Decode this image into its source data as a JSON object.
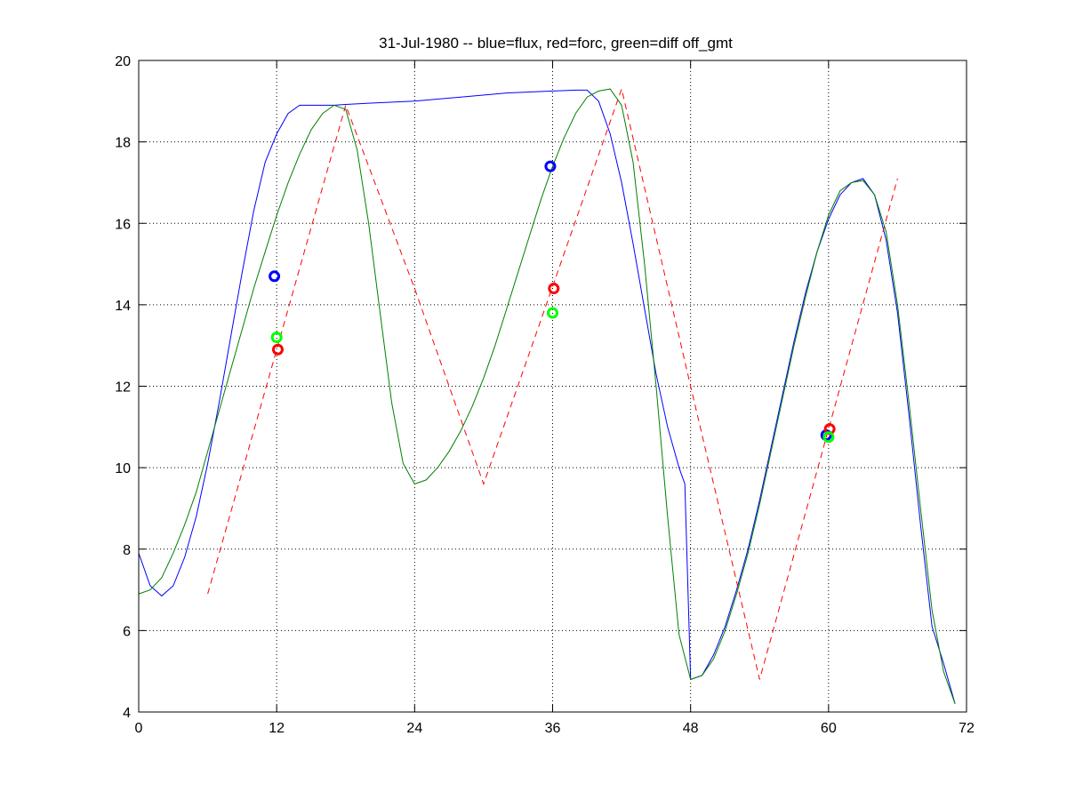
{
  "chart_data": {
    "type": "line",
    "title": "31-Jul-1980 -- blue=flux, red=forc, green=diff off_gmt",
    "xlabel": "",
    "ylabel": "",
    "xlim": [
      0,
      72
    ],
    "ylim": [
      4,
      20
    ],
    "xticks": [
      0,
      12,
      24,
      36,
      48,
      60,
      72
    ],
    "yticks": [
      4,
      6,
      8,
      10,
      12,
      14,
      16,
      18,
      20
    ],
    "grid": true,
    "series": [
      {
        "color": "#0000ff",
        "style": "solid",
        "x": [
          0,
          1,
          2,
          3,
          4,
          5,
          6,
          7,
          8,
          9,
          10,
          11,
          12,
          13,
          14,
          15,
          16,
          17,
          18,
          20,
          24,
          28,
          32,
          36,
          38,
          39,
          40,
          41,
          42,
          43,
          44,
          45,
          46,
          47,
          47.5,
          48,
          49,
          50,
          51,
          52,
          53,
          54,
          55,
          56,
          57,
          58,
          59,
          60,
          61,
          62,
          63,
          64,
          65,
          66,
          67,
          68,
          69,
          70,
          71
        ],
        "y": [
          7.9,
          7.1,
          6.85,
          7.1,
          7.8,
          8.8,
          10.1,
          11.6,
          13.2,
          14.8,
          16.3,
          17.5,
          18.2,
          18.7,
          18.9,
          18.9,
          18.9,
          18.9,
          18.92,
          18.95,
          19.0,
          19.1,
          19.2,
          19.25,
          19.27,
          19.27,
          19.0,
          18.2,
          17.0,
          15.5,
          13.9,
          12.3,
          11.0,
          10.0,
          9.6,
          4.8,
          4.9,
          5.4,
          6.1,
          7.0,
          8.0,
          9.2,
          10.5,
          11.8,
          13.1,
          14.3,
          15.3,
          16.1,
          16.7,
          17.0,
          17.1,
          16.7,
          15.6,
          13.8,
          11.3,
          8.6,
          6.1,
          5.2,
          4.2
        ]
      },
      {
        "color": "#ff0000",
        "style": "dashed",
        "x": [
          6,
          18,
          24,
          30,
          42,
          48,
          54,
          66
        ],
        "y": [
          6.9,
          18.9,
          14.4,
          9.6,
          19.3,
          12.0,
          4.8,
          17.1
        ]
      },
      {
        "color": "#008000",
        "style": "solid",
        "x": [
          0,
          1,
          2,
          3,
          4,
          5,
          6,
          7,
          8,
          9,
          10,
          11,
          12,
          13,
          14,
          15,
          16,
          17,
          18,
          19,
          20,
          21,
          22,
          23,
          24,
          25,
          26,
          27,
          28,
          29,
          30,
          31,
          32,
          33,
          34,
          35,
          36,
          37,
          38,
          39,
          40,
          41,
          42,
          43,
          44,
          45,
          46,
          47,
          48,
          49,
          50,
          51,
          52,
          53,
          54,
          55,
          56,
          57,
          58,
          59,
          60,
          61,
          62,
          63,
          64,
          65,
          66,
          67,
          68,
          69,
          70,
          71
        ],
        "y": [
          6.9,
          7.0,
          7.3,
          7.9,
          8.6,
          9.4,
          10.4,
          11.4,
          12.4,
          13.4,
          14.4,
          15.3,
          16.2,
          17.0,
          17.7,
          18.3,
          18.7,
          18.9,
          18.8,
          17.8,
          16.0,
          13.8,
          11.6,
          10.1,
          9.6,
          9.7,
          10.0,
          10.4,
          10.9,
          11.5,
          12.2,
          13.0,
          13.9,
          14.8,
          15.7,
          16.6,
          17.4,
          18.1,
          18.7,
          19.1,
          19.25,
          19.3,
          18.9,
          17.5,
          15.0,
          12.0,
          8.8,
          5.9,
          4.8,
          4.9,
          5.3,
          6.0,
          6.9,
          7.9,
          9.1,
          10.4,
          11.7,
          13.0,
          14.2,
          15.3,
          16.2,
          16.8,
          17.0,
          17.05,
          16.7,
          15.8,
          14.0,
          11.6,
          9.0,
          6.5,
          5.0,
          4.2
        ]
      }
    ],
    "markers": [
      {
        "color": "#0000ff",
        "x": 11.8,
        "y": 14.7
      },
      {
        "color": "#ff0000",
        "x": 12.1,
        "y": 12.9
      },
      {
        "color": "#00ff00",
        "x": 12.0,
        "y": 13.2
      },
      {
        "color": "#0000ff",
        "x": 35.8,
        "y": 17.4
      },
      {
        "color": "#ff0000",
        "x": 36.1,
        "y": 14.4
      },
      {
        "color": "#00ff00",
        "x": 36.0,
        "y": 13.8
      },
      {
        "color": "#0000ff",
        "x": 59.8,
        "y": 10.8
      },
      {
        "color": "#ff0000",
        "x": 60.1,
        "y": 10.95
      },
      {
        "color": "#00ff00",
        "x": 60.0,
        "y": 10.75
      }
    ]
  }
}
